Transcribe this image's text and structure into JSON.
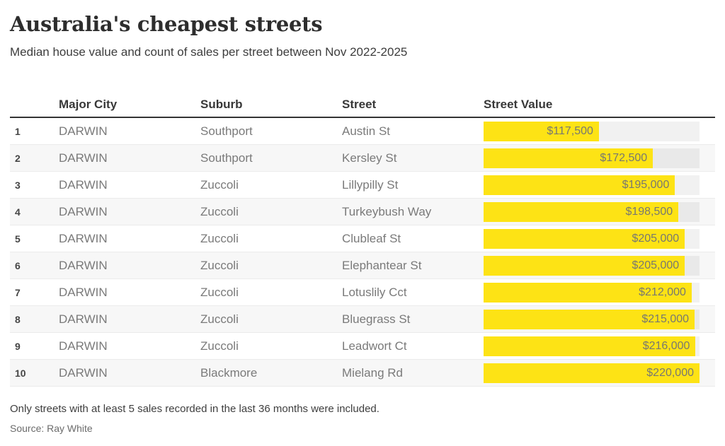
{
  "header": {
    "title": "Australia's cheapest streets",
    "subtitle": "Median house value and count of sales per street between Nov 2022-2025"
  },
  "table": {
    "headers": {
      "rank": "",
      "city": "Major City",
      "suburb": "Suburb",
      "street": "Street",
      "value": "Street Value"
    },
    "rows": [
      {
        "rank": "1",
        "city": "DARWIN",
        "suburb": "Southport",
        "street": "Austin St",
        "value": 117500,
        "value_label": "$117,500"
      },
      {
        "rank": "2",
        "city": "DARWIN",
        "suburb": "Southport",
        "street": "Kersley St",
        "value": 172500,
        "value_label": "$172,500"
      },
      {
        "rank": "3",
        "city": "DARWIN",
        "suburb": "Zuccoli",
        "street": "Lillypilly St",
        "value": 195000,
        "value_label": "$195,000"
      },
      {
        "rank": "4",
        "city": "DARWIN",
        "suburb": "Zuccoli",
        "street": "Turkeybush Way",
        "value": 198500,
        "value_label": "$198,500"
      },
      {
        "rank": "5",
        "city": "DARWIN",
        "suburb": "Zuccoli",
        "street": "Clubleaf St",
        "value": 205000,
        "value_label": "$205,000"
      },
      {
        "rank": "6",
        "city": "DARWIN",
        "suburb": "Zuccoli",
        "street": "Elephantear St",
        "value": 205000,
        "value_label": "$205,000"
      },
      {
        "rank": "7",
        "city": "DARWIN",
        "suburb": "Zuccoli",
        "street": "Lotuslily Cct",
        "value": 212000,
        "value_label": "$212,000"
      },
      {
        "rank": "8",
        "city": "DARWIN",
        "suburb": "Zuccoli",
        "street": "Bluegrass St",
        "value": 215000,
        "value_label": "$215,000"
      },
      {
        "rank": "9",
        "city": "DARWIN",
        "suburb": "Zuccoli",
        "street": "Leadwort Ct",
        "value": 216000,
        "value_label": "$216,000"
      },
      {
        "rank": "10",
        "city": "DARWIN",
        "suburb": "Blackmore",
        "street": "Mielang Rd",
        "value": 220000,
        "value_label": "$220,000"
      }
    ]
  },
  "chart_data": {
    "type": "bar",
    "orientation": "horizontal",
    "title": "Australia's cheapest streets",
    "subtitle": "Median house value and count of sales per street between Nov 2022-2025",
    "categories": [
      "Austin St",
      "Kersley St",
      "Lillypilly St",
      "Turkeybush Way",
      "Clubleaf St",
      "Elephantear St",
      "Lotuslily Cct",
      "Bluegrass St",
      "Leadwort Ct",
      "Mielang Rd"
    ],
    "values": [
      117500,
      172500,
      195000,
      198500,
      205000,
      205000,
      212000,
      215000,
      216000,
      220000
    ],
    "value_labels": [
      "$117,500",
      "$172,500",
      "$195,000",
      "$198,500",
      "$205,000",
      "$205,000",
      "$212,000",
      "$215,000",
      "$216,000",
      "$220,000"
    ],
    "xlabel": "Street Value",
    "ylabel": "Street",
    "xlim": [
      0,
      220000
    ],
    "grid": false,
    "legend": false,
    "bar_color": "#fde315",
    "track_color": "#ececec"
  },
  "footer": {
    "note": "Only streets with at least 5 sales recorded in the last 36 months were included.",
    "source": "Source: Ray White"
  },
  "colors": {
    "accent_yellow": "#fde315",
    "bar_track": "#ececec",
    "alt_row": "#f7f7f7",
    "header_rule": "#333333",
    "title_text": "#2d2d2d",
    "body_text": "#7a7a7a"
  }
}
